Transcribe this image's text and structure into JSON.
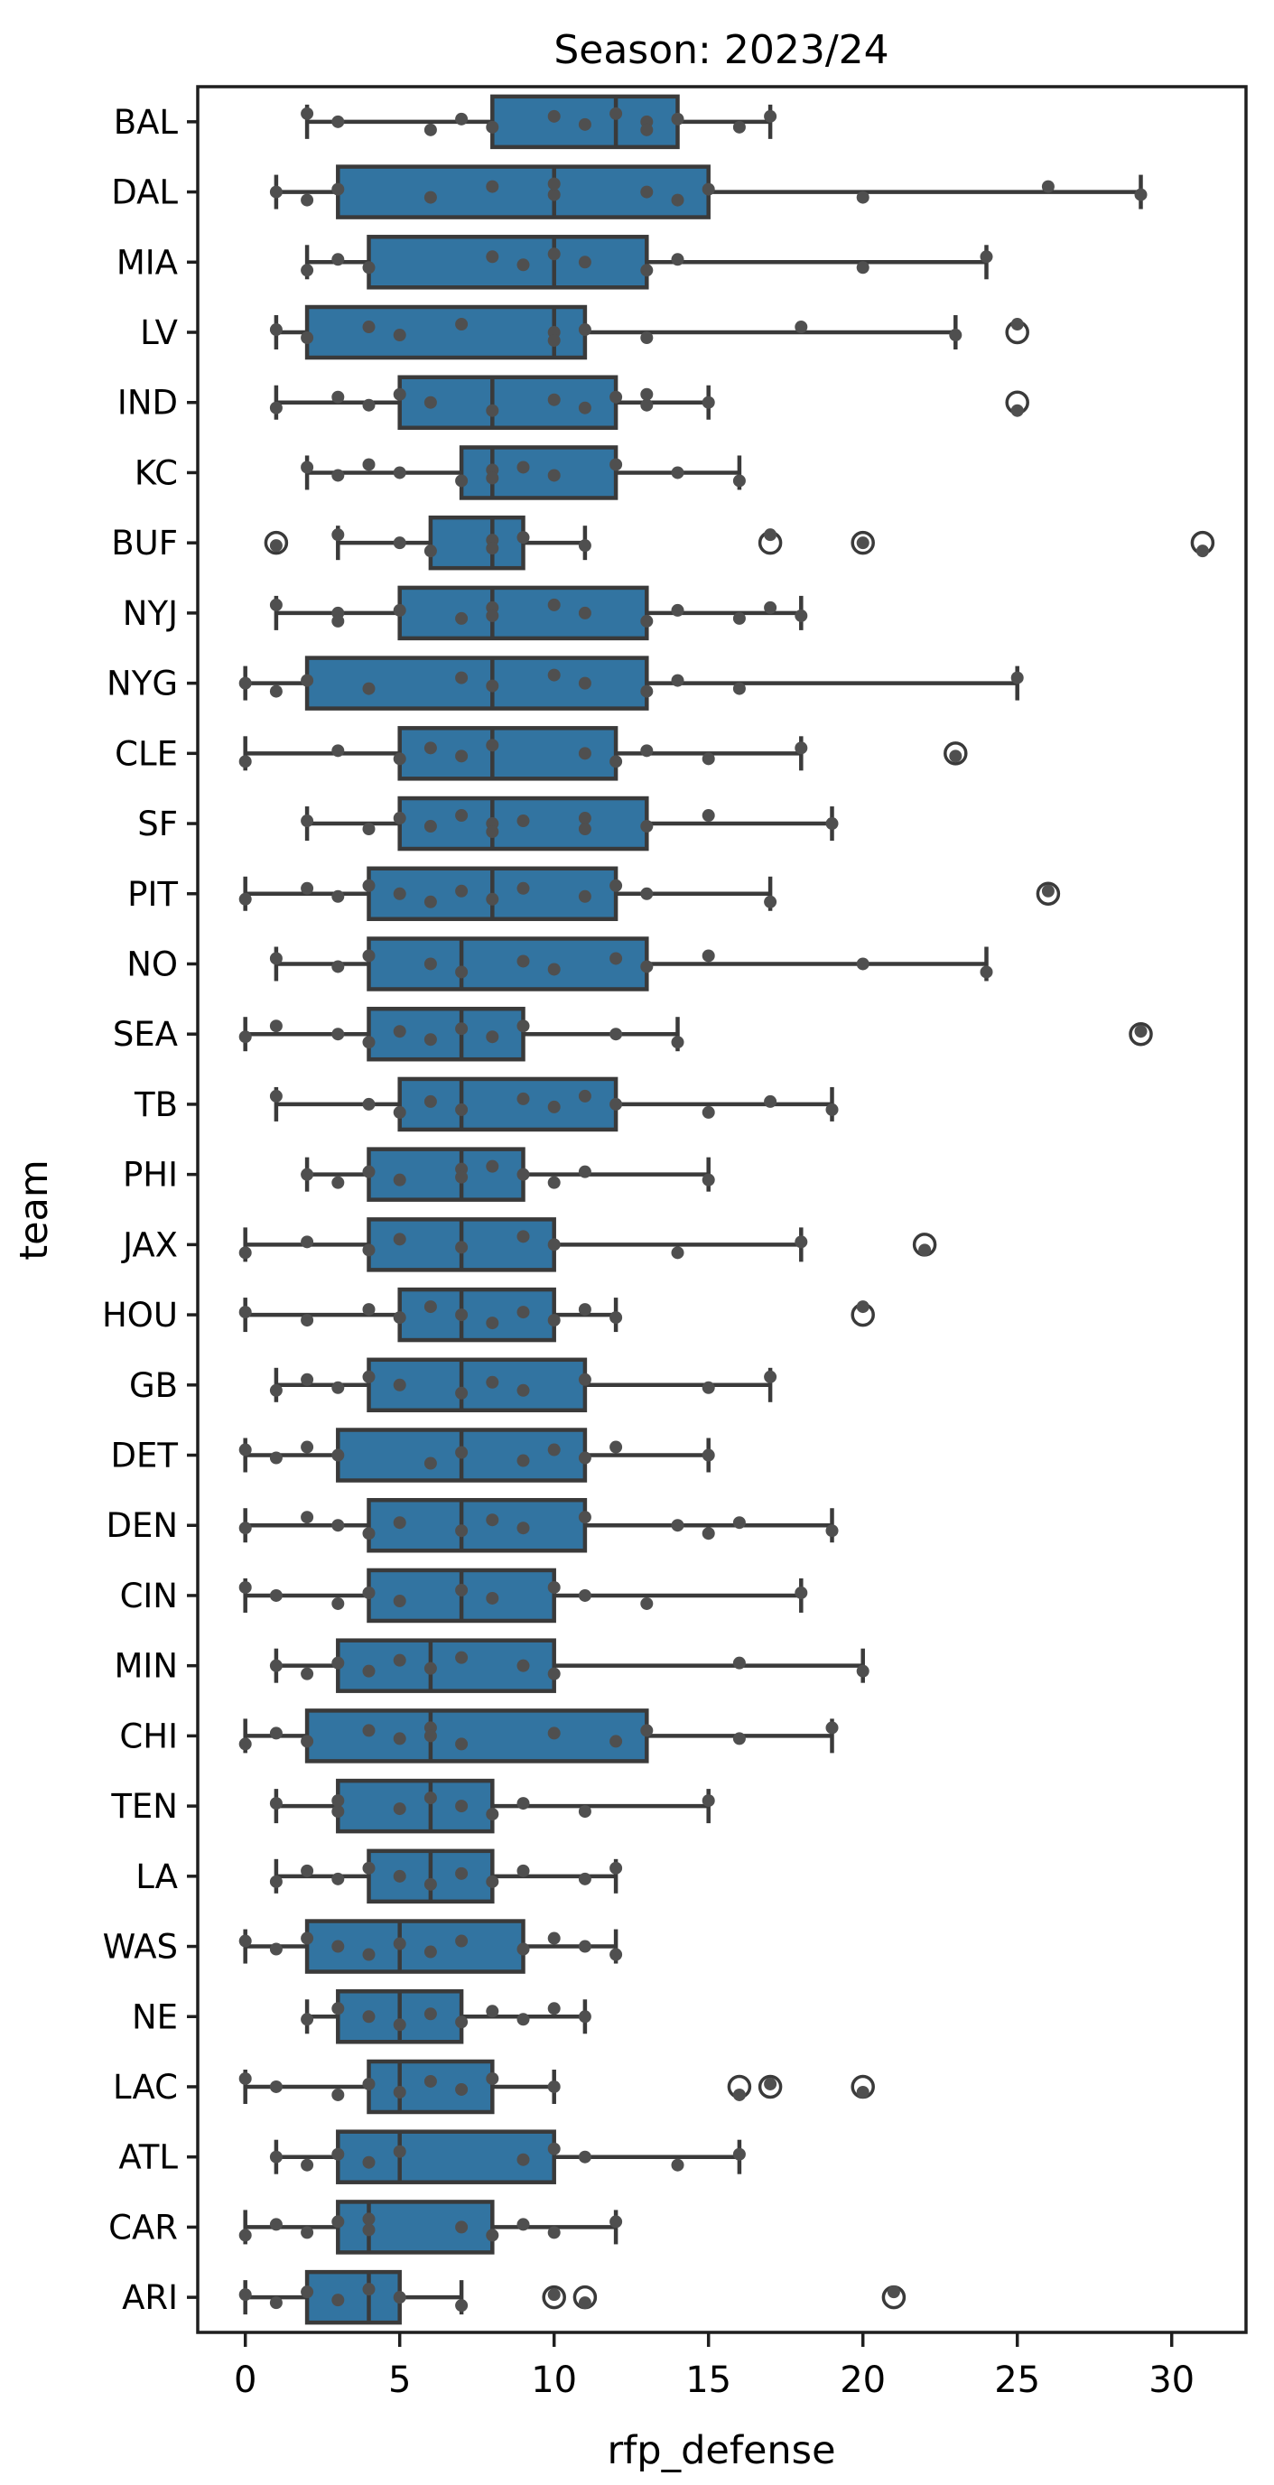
{
  "chart_data": {
    "type": "boxplot",
    "orientation": "horizontal",
    "title": "Season: 2023/24",
    "xlabel": "rfp_defense",
    "ylabel": "team",
    "xlim": [
      -1.5,
      32.4
    ],
    "xticks": [
      0,
      5,
      10,
      15,
      20,
      25,
      30
    ],
    "grid": false,
    "legend": "none",
    "box_fill_color": "#3274a1",
    "line_color": "#3a3a3a",
    "point_color": "#4f4f4f",
    "outlier_ring_color": "#3a3a3a",
    "teams": [
      {
        "label": "BAL",
        "whislo": 2,
        "q1": 8,
        "med": 12,
        "q3": 14,
        "whishi": 17,
        "outliers": [],
        "points": [
          2,
          3,
          6,
          7,
          8,
          10,
          11,
          12,
          13,
          13,
          14,
          16,
          17
        ]
      },
      {
        "label": "DAL",
        "whislo": 1,
        "q1": 3,
        "med": 10,
        "q3": 15,
        "whishi": 29,
        "outliers": [],
        "points": [
          1,
          2,
          3,
          6,
          8,
          10,
          10,
          13,
          14,
          15,
          20,
          26,
          29
        ]
      },
      {
        "label": "MIA",
        "whislo": 2,
        "q1": 4,
        "med": 10,
        "q3": 13,
        "whishi": 24,
        "outliers": [],
        "points": [
          2,
          3,
          4,
          8,
          9,
          10,
          11,
          13,
          14,
          20,
          24
        ]
      },
      {
        "label": "LV",
        "whislo": 1,
        "q1": 2,
        "med": 10,
        "q3": 11,
        "whishi": 23,
        "outliers": [
          25
        ],
        "points": [
          1,
          2,
          4,
          5,
          7,
          10,
          10,
          11,
          13,
          18,
          23,
          25
        ]
      },
      {
        "label": "IND",
        "whislo": 1,
        "q1": 5,
        "med": 8,
        "q3": 12,
        "whishi": 15,
        "outliers": [
          25
        ],
        "points": [
          1,
          3,
          4,
          5,
          6,
          8,
          10,
          11,
          12,
          13,
          13,
          15,
          25
        ]
      },
      {
        "label": "KC",
        "whislo": 2,
        "q1": 7,
        "med": 8,
        "q3": 12,
        "whishi": 16,
        "outliers": [],
        "points": [
          2,
          3,
          4,
          5,
          7,
          8,
          8,
          9,
          10,
          12,
          14,
          16
        ]
      },
      {
        "label": "BUF",
        "whislo": 3,
        "q1": 6,
        "med": 8,
        "q3": 9,
        "whishi": 11,
        "outliers": [
          1,
          17,
          20,
          31
        ],
        "points": [
          1,
          3,
          5,
          6,
          8,
          8,
          9,
          11,
          17,
          20,
          31
        ]
      },
      {
        "label": "NYJ",
        "whislo": 1,
        "q1": 5,
        "med": 8,
        "q3": 13,
        "whishi": 18,
        "outliers": [],
        "points": [
          1,
          3,
          3,
          5,
          7,
          8,
          8,
          10,
          11,
          13,
          14,
          16,
          17,
          18
        ]
      },
      {
        "label": "NYG",
        "whislo": 0,
        "q1": 2,
        "med": 8,
        "q3": 13,
        "whishi": 25,
        "outliers": [],
        "points": [
          0,
          1,
          2,
          4,
          7,
          8,
          10,
          11,
          13,
          14,
          16,
          25
        ]
      },
      {
        "label": "CLE",
        "whislo": 0,
        "q1": 5,
        "med": 8,
        "q3": 12,
        "whishi": 18,
        "outliers": [
          23
        ],
        "points": [
          0,
          3,
          5,
          6,
          7,
          8,
          11,
          12,
          13,
          15,
          18,
          23
        ]
      },
      {
        "label": "SF",
        "whislo": 2,
        "q1": 5,
        "med": 8,
        "q3": 13,
        "whishi": 19,
        "outliers": [],
        "points": [
          2,
          4,
          5,
          6,
          7,
          8,
          8,
          9,
          11,
          11,
          13,
          15,
          19
        ]
      },
      {
        "label": "PIT",
        "whislo": 0,
        "q1": 4,
        "med": 8,
        "q3": 12,
        "whishi": 17,
        "outliers": [
          26
        ],
        "points": [
          0,
          2,
          3,
          4,
          5,
          6,
          7,
          8,
          9,
          11,
          12,
          13,
          17,
          26
        ]
      },
      {
        "label": "NO",
        "whislo": 1,
        "q1": 4,
        "med": 7,
        "q3": 13,
        "whishi": 24,
        "outliers": [],
        "points": [
          1,
          3,
          4,
          6,
          7,
          9,
          10,
          12,
          13,
          15,
          20,
          24
        ]
      },
      {
        "label": "SEA",
        "whislo": 0,
        "q1": 4,
        "med": 7,
        "q3": 9,
        "whishi": 14,
        "outliers": [
          29
        ],
        "points": [
          0,
          1,
          3,
          4,
          5,
          6,
          7,
          8,
          9,
          12,
          14,
          29
        ]
      },
      {
        "label": "TB",
        "whislo": 1,
        "q1": 5,
        "med": 7,
        "q3": 12,
        "whishi": 19,
        "outliers": [],
        "points": [
          1,
          4,
          5,
          6,
          7,
          9,
          10,
          11,
          12,
          15,
          17,
          19
        ]
      },
      {
        "label": "PHI",
        "whislo": 2,
        "q1": 4,
        "med": 7,
        "q3": 9,
        "whishi": 15,
        "outliers": [],
        "points": [
          2,
          3,
          4,
          5,
          7,
          7,
          8,
          9,
          10,
          11,
          15
        ]
      },
      {
        "label": "JAX",
        "whislo": 0,
        "q1": 4,
        "med": 7,
        "q3": 10,
        "whishi": 18,
        "outliers": [
          22
        ],
        "points": [
          0,
          2,
          4,
          5,
          7,
          9,
          10,
          14,
          18,
          22
        ]
      },
      {
        "label": "HOU",
        "whislo": 0,
        "q1": 5,
        "med": 7,
        "q3": 10,
        "whishi": 12,
        "outliers": [
          20
        ],
        "points": [
          0,
          2,
          4,
          5,
          6,
          7,
          8,
          9,
          10,
          11,
          12,
          20
        ]
      },
      {
        "label": "GB",
        "whislo": 1,
        "q1": 4,
        "med": 7,
        "q3": 11,
        "whishi": 17,
        "outliers": [],
        "points": [
          1,
          2,
          3,
          4,
          5,
          7,
          8,
          9,
          11,
          15,
          17
        ]
      },
      {
        "label": "DET",
        "whislo": 0,
        "q1": 3,
        "med": 7,
        "q3": 11,
        "whishi": 15,
        "outliers": [],
        "points": [
          0,
          1,
          2,
          3,
          6,
          7,
          9,
          10,
          11,
          12,
          15
        ]
      },
      {
        "label": "DEN",
        "whislo": 0,
        "q1": 4,
        "med": 7,
        "q3": 11,
        "whishi": 19,
        "outliers": [],
        "points": [
          0,
          2,
          3,
          4,
          5,
          7,
          8,
          9,
          11,
          14,
          15,
          16,
          19
        ]
      },
      {
        "label": "CIN",
        "whislo": 0,
        "q1": 4,
        "med": 7,
        "q3": 10,
        "whishi": 18,
        "outliers": [],
        "points": [
          0,
          1,
          3,
          4,
          5,
          7,
          8,
          10,
          11,
          13,
          18
        ]
      },
      {
        "label": "MIN",
        "whislo": 1,
        "q1": 3,
        "med": 6,
        "q3": 10,
        "whishi": 20,
        "outliers": [],
        "points": [
          1,
          2,
          3,
          4,
          5,
          6,
          7,
          9,
          10,
          16,
          20
        ]
      },
      {
        "label": "CHI",
        "whislo": 0,
        "q1": 2,
        "med": 6,
        "q3": 13,
        "whishi": 19,
        "outliers": [],
        "points": [
          0,
          1,
          2,
          4,
          5,
          6,
          6,
          7,
          10,
          12,
          13,
          16,
          19
        ]
      },
      {
        "label": "TEN",
        "whislo": 1,
        "q1": 3,
        "med": 6,
        "q3": 8,
        "whishi": 15,
        "outliers": [],
        "points": [
          1,
          3,
          3,
          5,
          6,
          7,
          8,
          9,
          11,
          15
        ]
      },
      {
        "label": "LA",
        "whislo": 1,
        "q1": 4,
        "med": 6,
        "q3": 8,
        "whishi": 12,
        "outliers": [],
        "points": [
          1,
          2,
          3,
          4,
          5,
          6,
          7,
          8,
          9,
          11,
          12
        ]
      },
      {
        "label": "WAS",
        "whislo": 0,
        "q1": 2,
        "med": 5,
        "q3": 9,
        "whishi": 12,
        "outliers": [],
        "points": [
          0,
          1,
          2,
          3,
          4,
          5,
          6,
          7,
          9,
          10,
          11,
          12
        ]
      },
      {
        "label": "NE",
        "whislo": 2,
        "q1": 3,
        "med": 5,
        "q3": 7,
        "whishi": 11,
        "outliers": [],
        "points": [
          2,
          3,
          4,
          5,
          6,
          7,
          8,
          9,
          10,
          11
        ]
      },
      {
        "label": "LAC",
        "whislo": 0,
        "q1": 4,
        "med": 5,
        "q3": 8,
        "whishi": 10,
        "outliers": [
          16,
          17,
          20
        ],
        "points": [
          0,
          1,
          3,
          4,
          5,
          6,
          7,
          8,
          10,
          16,
          17,
          20
        ]
      },
      {
        "label": "ATL",
        "whislo": 1,
        "q1": 3,
        "med": 5,
        "q3": 10,
        "whishi": 16,
        "outliers": [],
        "points": [
          1,
          2,
          3,
          4,
          5,
          9,
          10,
          11,
          14,
          16
        ]
      },
      {
        "label": "CAR",
        "whislo": 0,
        "q1": 3,
        "med": 4,
        "q3": 8,
        "whishi": 12,
        "outliers": [],
        "points": [
          0,
          1,
          2,
          3,
          4,
          4,
          7,
          8,
          9,
          10,
          12
        ]
      },
      {
        "label": "ARI",
        "whislo": 0,
        "q1": 2,
        "med": 4,
        "q3": 5,
        "whishi": 7,
        "outliers": [
          10,
          11,
          21
        ],
        "points": [
          0,
          1,
          2,
          3,
          4,
          5,
          7,
          10,
          11,
          21
        ]
      }
    ]
  }
}
